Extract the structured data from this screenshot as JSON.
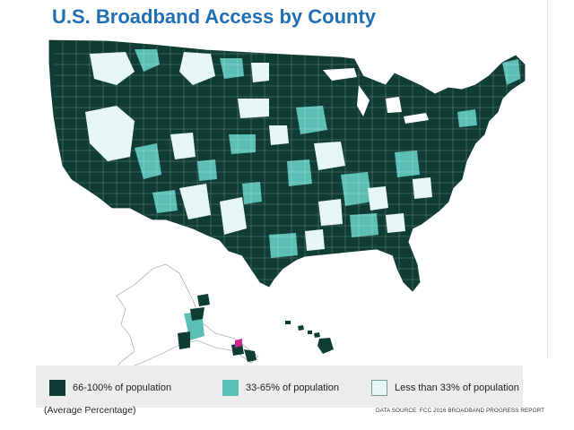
{
  "title": "U.S. Broadband Access by County",
  "colors": {
    "high": "#0f3c33",
    "mid": "#5bbfb6",
    "low": "#e6f5f5",
    "county_border": "#ffffff",
    "title": "#1f6fb2",
    "legend_bg": "#ececec"
  },
  "legend": {
    "items": [
      {
        "label": "66-100% of population",
        "color": "#0f3c33"
      },
      {
        "label": "33-65% of population",
        "color": "#5bbfb6"
      },
      {
        "label": "Less than 33% of population",
        "color": "#e6f5f5"
      }
    ]
  },
  "average_note": "(Average Percentage)",
  "source": "DATA SOURCE: FCC 2016 BROADBAND PROGRESS REPORT"
}
